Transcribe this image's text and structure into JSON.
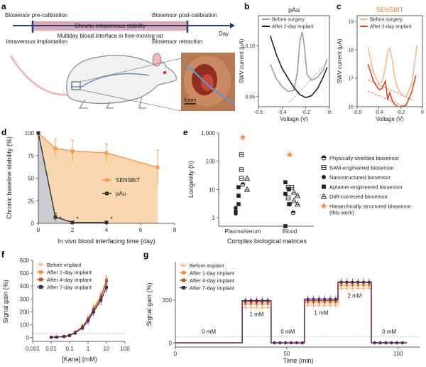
{
  "panels": {
    "a": {
      "label": "a",
      "timeline": {
        "pre": "Biosensor pre-calibration",
        "post": "Biosensor post-calibration",
        "stability": "Chronic intravenous stability",
        "interface": "Multiday blood interface in free-moving rat",
        "implant": "Intravenous implantation",
        "retract": "Biosensor retraction",
        "axis": "Day"
      },
      "photo_scale": "5 mm",
      "colors": {
        "bar": "#dcaab6",
        "rat_body": "#f2f2f2",
        "rat_outline": "#8a8a8a",
        "pink": "#f3b9b9",
        "vessel": "#6f8fc8",
        "tissue": "#9b3d2a"
      }
    },
    "b": {
      "label": "b",
      "title": "pAu",
      "legend": [
        "Before surgery",
        "After 2-day implant"
      ],
      "colors": [
        "#9e9e9e",
        "#222222"
      ],
      "baseline_color": "#aaaaaa"
    },
    "c": {
      "label": "c",
      "title": "SENSBIT",
      "title_color": "#f07e3c",
      "legend": [
        "Before surgery",
        "After 2-day implant"
      ],
      "colors": [
        "#f5b98a",
        "#d94a25"
      ],
      "baseline_color": "#e0703e"
    },
    "d": {
      "label": "d",
      "series_colors": [
        "#f59a4f",
        "#333333"
      ],
      "fill_colors": [
        "#f7cfa0",
        "#c7cbd4"
      ],
      "star": "*"
    },
    "e": {
      "label": "e",
      "star_color": "#f07e3c",
      "legend": [
        {
          "icon": "physically-shielded",
          "text": "Physically shielded biosensor"
        },
        {
          "icon": "sam-engineered",
          "text": "SAM-engineered biosensor"
        },
        {
          "icon": "nanostructured",
          "text": "Nanostructured biosensor"
        },
        {
          "icon": "aptamer-engineered",
          "text": "Aptamer-engineered biosensor"
        },
        {
          "icon": "drift-corrected",
          "text": "Drift-corrected biosensor"
        },
        {
          "icon": "hierarchical",
          "text": "Hierarchically structured biosensor (this work)"
        }
      ]
    },
    "f": {
      "label": "f"
    },
    "g": {
      "label": "g",
      "concentration_labels": [
        "0 mM",
        "1 mM",
        "0 mM",
        "1 mM",
        "2 mM",
        "0 mM"
      ]
    },
    "implant_legend": {
      "items": [
        "Before implant",
        "After 1-day implant",
        "After 4-day implant",
        "After 7-day implant"
      ],
      "colors": [
        "#f8c79a",
        "#f0913f",
        "#b65b2a",
        "#4a2560"
      ]
    }
  },
  "chart_data": [
    {
      "id": "b",
      "type": "line",
      "title": "pAu",
      "xlabel": "Voltage (V)",
      "ylabel": "SWV current (µA)",
      "xlim": [
        -0.6,
        0
      ],
      "ylim": [
        0.04,
        0.13
      ],
      "xticks": [
        -0.6,
        -0.4,
        -0.2,
        0
      ],
      "yticks": [
        0.05,
        0.1
      ],
      "series": [
        {
          "name": "Before surgery",
          "x": [
            -0.5,
            -0.45,
            -0.4,
            -0.35,
            -0.3,
            -0.27,
            -0.25,
            -0.23,
            -0.21,
            -0.19,
            -0.15,
            -0.1,
            -0.05,
            -0.02
          ],
          "y": [
            0.082,
            0.068,
            0.06,
            0.055,
            0.056,
            0.075,
            0.105,
            0.114,
            0.098,
            0.072,
            0.066,
            0.069,
            0.077,
            0.087
          ]
        },
        {
          "name": "After 2-day implant",
          "x": [
            -0.5,
            -0.45,
            -0.4,
            -0.35,
            -0.3,
            -0.25,
            -0.2,
            -0.15,
            -0.1,
            -0.05,
            -0.02
          ],
          "y": [
            0.11,
            0.092,
            0.078,
            0.068,
            0.059,
            0.052,
            0.049,
            0.051,
            0.058,
            0.07,
            0.079
          ]
        },
        {
          "name": "baseline",
          "x": [
            -0.34,
            -0.05
          ],
          "y": [
            0.044,
            0.08
          ]
        }
      ]
    },
    {
      "id": "c",
      "type": "line",
      "title": "SENSBIT",
      "xlabel": "Voltage (V)",
      "ylabel": "SWV current (µA)",
      "xlim": [
        -0.6,
        0
      ],
      "ylim": [
        16,
        19.2
      ],
      "xticks": [
        -0.6,
        -0.4,
        -0.2,
        0
      ],
      "yticks": [
        16,
        17,
        18,
        19
      ],
      "series": [
        {
          "name": "Before surgery",
          "x": [
            -0.5,
            -0.45,
            -0.4,
            -0.37,
            -0.34,
            -0.32,
            -0.3,
            -0.28,
            -0.26,
            -0.23,
            -0.2,
            -0.15,
            -0.1,
            -0.05
          ],
          "y": [
            18.1,
            17.2,
            16.8,
            16.9,
            17.4,
            17.9,
            18.05,
            17.7,
            17.1,
            16.7,
            16.45,
            16.35,
            16.8,
            18.15
          ]
        },
        {
          "name": "After 2-day implant",
          "x": [
            -0.5,
            -0.45,
            -0.4,
            -0.37,
            -0.34,
            -0.32,
            -0.3,
            -0.28,
            -0.26,
            -0.23,
            -0.2,
            -0.15,
            -0.1,
            -0.06
          ],
          "y": [
            17.5,
            16.9,
            16.6,
            16.65,
            16.9,
            16.25,
            16.5,
            16.25,
            16.1,
            16.0,
            16.0,
            16.05,
            16.5,
            17.1
          ]
        },
        {
          "name": "baseline-before",
          "x": [
            -0.5,
            -0.1
          ],
          "y": [
            16.95,
            16.25
          ]
        },
        {
          "name": "baseline-after",
          "x": [
            -0.5,
            -0.1
          ],
          "y": [
            16.55,
            15.9
          ]
        }
      ]
    },
    {
      "id": "d",
      "type": "line",
      "xlabel": "In vivo blood interfacing time (day)",
      "ylabel": "Chronic baseline stability (%)",
      "xlim": [
        0,
        8
      ],
      "ylim": [
        0,
        100
      ],
      "xticks": [
        0,
        2,
        4,
        6,
        8
      ],
      "yticks": [
        0,
        25,
        50,
        75,
        100
      ],
      "series": [
        {
          "name": "SENSBIT",
          "x": [
            0,
            1,
            2,
            4,
            7
          ],
          "y": [
            100,
            83,
            80,
            78,
            62
          ],
          "err": [
            0,
            10,
            12,
            10,
            19
          ]
        },
        {
          "name": "pAu",
          "x": [
            0,
            1,
            2,
            4
          ],
          "y": [
            100,
            7,
            1,
            1
          ],
          "err": [
            0,
            4,
            1,
            1
          ]
        }
      ],
      "significance": [
        1,
        2,
        4
      ]
    },
    {
      "id": "e",
      "type": "scatter",
      "xlabel": "Complex biological matrices",
      "ylabel": "Longevity (h)",
      "categories": [
        "Plasma/serum",
        "Blood"
      ],
      "yscale": "log",
      "ylim": [
        0.5,
        1000
      ],
      "ytick_labels": [
        "1",
        "10",
        "100",
        "1,000"
      ],
      "points": [
        {
          "cat": 0,
          "y": 15,
          "type": "physically-shielded"
        },
        {
          "cat": 0,
          "y": 170,
          "type": "sam-engineered"
        },
        {
          "cat": 0,
          "y": 50,
          "type": "sam-engineered"
        },
        {
          "cat": 0,
          "y": 25,
          "type": "sam-engineered"
        },
        {
          "cat": 0,
          "y": 2.2,
          "type": "nanostructured"
        },
        {
          "cat": 0,
          "y": 1.7,
          "type": "nanostructured"
        },
        {
          "cat": 0,
          "y": 1.4,
          "type": "nanostructured"
        },
        {
          "cat": 0,
          "y": 12,
          "type": "aptamer-engineered"
        },
        {
          "cat": 0,
          "y": 6,
          "type": "aptamer-engineered"
        },
        {
          "cat": 0,
          "y": 3,
          "type": "aptamer-engineered"
        },
        {
          "cat": 0,
          "y": 25,
          "type": "drift-corrected"
        },
        {
          "cat": 0,
          "y": 10,
          "type": "drift-corrected"
        },
        {
          "cat": 0,
          "y": 700,
          "type": "hierarchical"
        },
        {
          "cat": 1,
          "y": 3,
          "type": "physically-shielded"
        },
        {
          "cat": 1,
          "y": 1.5,
          "type": "physically-shielded"
        },
        {
          "cat": 1,
          "y": 12,
          "type": "sam-engineered"
        },
        {
          "cat": 1,
          "y": 12,
          "type": "sam-engineered"
        },
        {
          "cat": 1,
          "y": 5,
          "type": "sam-engineered"
        },
        {
          "cat": 1,
          "y": 18,
          "type": "aptamer-engineered"
        },
        {
          "cat": 1,
          "y": 10,
          "type": "aptamer-engineered"
        },
        {
          "cat": 1,
          "y": 7,
          "type": "aptamer-engineered"
        },
        {
          "cat": 1,
          "y": 3,
          "type": "aptamer-engineered"
        },
        {
          "cat": 1,
          "y": 0.5,
          "type": "aptamer-engineered"
        },
        {
          "cat": 1,
          "y": 8,
          "type": "drift-corrected"
        },
        {
          "cat": 1,
          "y": 6,
          "type": "drift-corrected"
        },
        {
          "cat": 1,
          "y": 4,
          "type": "drift-corrected"
        },
        {
          "cat": 1,
          "y": 3,
          "type": "drift-corrected"
        },
        {
          "cat": 1,
          "y": 170,
          "type": "hierarchical"
        }
      ]
    },
    {
      "id": "f",
      "type": "line",
      "xlabel": "[Kana] (mM)",
      "ylabel": "Signal gain (%)",
      "xscale": "log",
      "xlim": [
        0.001,
        100
      ],
      "ylim": [
        -30,
        600
      ],
      "xticks": [
        0.001,
        0.01,
        0.1,
        1,
        10,
        100
      ],
      "xtick_labels": [
        "0.001",
        "0.01",
        "0.1",
        "1",
        "10",
        "100"
      ],
      "yticks": [
        0,
        100,
        200,
        300,
        400,
        500,
        600
      ],
      "x": [
        0.01,
        0.02,
        0.05,
        0.1,
        0.2,
        0.5,
        1,
        2,
        5,
        10
      ],
      "series": [
        {
          "name": "Before implant",
          "y": [
            2,
            5,
            10,
            20,
            45,
            90,
            150,
            230,
            330,
            410
          ],
          "err": [
            3,
            4,
            6,
            8,
            15,
            25,
            30,
            35,
            40,
            40
          ]
        },
        {
          "name": "After 1-day implant",
          "y": [
            2,
            4,
            9,
            18,
            40,
            85,
            145,
            220,
            320,
            450
          ],
          "err": [
            3,
            4,
            6,
            8,
            15,
            25,
            30,
            35,
            40,
            40
          ]
        },
        {
          "name": "After 4-day implant",
          "y": [
            2,
            4,
            8,
            17,
            38,
            80,
            140,
            215,
            310,
            440
          ],
          "err": [
            3,
            4,
            6,
            8,
            15,
            25,
            30,
            35,
            40,
            40
          ]
        },
        {
          "name": "After 7-day implant",
          "y": [
            2,
            3,
            7,
            15,
            35,
            75,
            130,
            200,
            290,
            390
          ],
          "err": [
            3,
            4,
            6,
            8,
            15,
            25,
            30,
            35,
            40,
            40
          ]
        }
      ]
    },
    {
      "id": "g",
      "type": "line",
      "xlabel": "Time (min)",
      "ylabel": "Signal gain (%)",
      "xlim": [
        0,
        110
      ],
      "ylim": [
        -20,
        380
      ],
      "xticks": [
        0,
        50,
        100
      ],
      "yticks": [
        0,
        200
      ],
      "segments": [
        {
          "t0": 0,
          "t1": 30,
          "conc": "0 mM",
          "values": [
            0,
            0,
            0,
            0
          ]
        },
        {
          "t0": 30,
          "t1": 43,
          "conc": "1 mM",
          "values": [
            165,
            182,
            192,
            198
          ]
        },
        {
          "t0": 43,
          "t1": 58,
          "conc": "0 mM",
          "values": [
            0,
            0,
            0,
            0
          ]
        },
        {
          "t0": 58,
          "t1": 73,
          "conc": "1 mM",
          "values": [
            175,
            190,
            198,
            205
          ]
        },
        {
          "t0": 73,
          "t1": 88,
          "conc": "2 mM",
          "values": [
            255,
            270,
            282,
            285
          ]
        },
        {
          "t0": 88,
          "t1": 104,
          "conc": "0 mM",
          "values": [
            0,
            0,
            0,
            0
          ]
        }
      ],
      "series_names": [
        "Before implant",
        "After 1-day implant",
        "After 4-day implant",
        "After 7-day implant"
      ]
    }
  ]
}
